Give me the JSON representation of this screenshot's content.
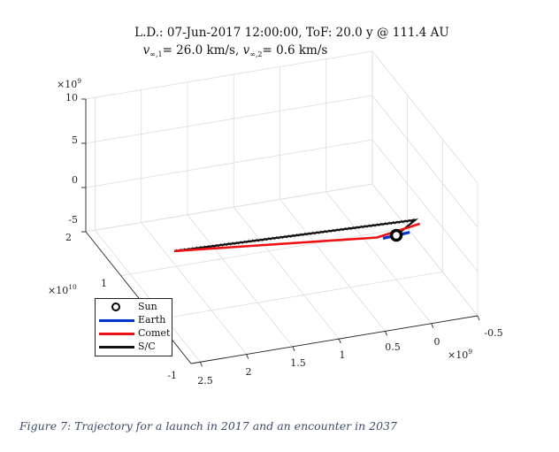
{
  "chart_data": {
    "type": "line",
    "projection": "3d",
    "title": {
      "line1": "L.D.: 07-Jun-2017 12:00:00, ToF: 20.0 y @ 111.4 AU",
      "line2": "v∞,1= 26.0 km/s, v∞,2= 0.6 km/s",
      "line2_parts": {
        "v1_symbol": "v",
        "v1_sub": "∞,1",
        "v1_rest": "= 26.0 km/s, ",
        "v2_symbol": "v",
        "v2_sub": "∞,2",
        "v2_rest": "= 0.6 km/s"
      }
    },
    "axes": {
      "x": {
        "ticks": [
          "-0.5",
          "0",
          "0.5",
          "1",
          "1.5",
          "2",
          "2.5"
        ],
        "tick_values": [
          -0.5,
          0,
          0.5,
          1,
          1.5,
          2,
          2.5
        ],
        "exponent": "×10⁹",
        "exponent_base": "×10",
        "exponent_power": "9",
        "range": [
          -0.5,
          2.6
        ]
      },
      "y": {
        "ticks": [
          "2",
          "1",
          "-1"
        ],
        "tick_values": [
          2,
          1,
          -1
        ],
        "exponent": "×10¹⁰",
        "exponent_base": "×10",
        "exponent_power": "10",
        "range": [
          -1,
          2
        ]
      },
      "z": {
        "ticks": [
          "10",
          "5",
          "0",
          "-5"
        ],
        "tick_values": [
          10,
          5,
          0,
          -5
        ],
        "exponent": "×10⁹",
        "exponent_base": "×10",
        "exponent_power": "9",
        "range": [
          -5,
          10
        ]
      },
      "grid": true
    },
    "legend": {
      "position": "bottom-left",
      "entries": [
        {
          "name": "Sun",
          "style": "circle",
          "color": "#000000"
        },
        {
          "name": "Earth",
          "style": "line",
          "color": "#0033cc"
        },
        {
          "name": "Comet",
          "style": "line",
          "color": "#ee1111"
        },
        {
          "name": "S/C",
          "style": "line",
          "color": "#111111"
        }
      ]
    },
    "series": [
      {
        "name": "Sun",
        "points": [
          [
            0,
            0,
            0
          ]
        ]
      },
      {
        "name": "Earth",
        "points": [
          [
            -0.15,
            0.015,
            0
          ],
          [
            0,
            0,
            0
          ],
          [
            0.15,
            -0.015,
            0
          ]
        ]
      },
      {
        "name": "Comet",
        "points": [
          [
            -0.3,
            0.12,
            0.2
          ],
          [
            0.2,
            0.02,
            0
          ],
          [
            2.4,
            0.0,
            2.4
          ]
        ]
      },
      {
        "name": "S/C",
        "points": [
          [
            0.0,
            0.0,
            0.0
          ],
          [
            -0.25,
            0.12,
            0.7
          ],
          [
            2.4,
            0.0,
            2.4
          ]
        ]
      }
    ]
  },
  "caption": "Figure 7: Trajectory for a launch in 2017 and an encounter in 2037"
}
